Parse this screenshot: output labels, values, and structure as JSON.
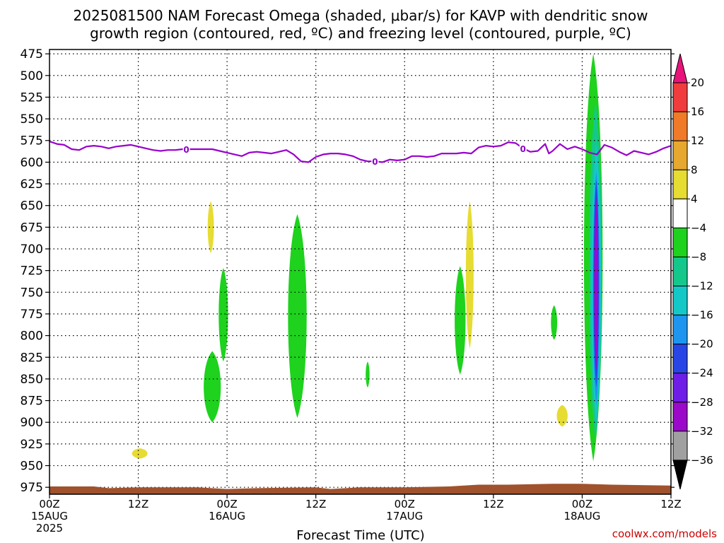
{
  "title_line1": "2025081500 NAM Forecast Omega (shaded, μbar/s) for KAVP with dendritic snow",
  "title_line2": "growth region (contoured, red, ºC) and freezing level (contoured, purple, ºC)",
  "x_axis_label": "Forecast Time (UTC)",
  "credit": "coolwx.com/models",
  "colors": {
    "frz_line": "#9900cc",
    "ground": "#a0522d",
    "grid": "#000000"
  },
  "chart_data": {
    "type": "heatmap",
    "x_unit": "forecast hour from 2025081500",
    "x_range": [
      0,
      84
    ],
    "y_unit": "hPa",
    "y_range": [
      475,
      983
    ],
    "y_scale": "pressure (descending down)",
    "y_ticks": [
      475,
      500,
      525,
      550,
      575,
      600,
      625,
      650,
      675,
      700,
      725,
      750,
      775,
      800,
      825,
      850,
      875,
      900,
      925,
      950,
      975
    ],
    "x_ticks": [
      {
        "hour": 0,
        "time": "00Z",
        "date": "15AUG",
        "year": "2025"
      },
      {
        "hour": 12,
        "time": "12Z",
        "date": "",
        "year": ""
      },
      {
        "hour": 24,
        "time": "00Z",
        "date": "16AUG",
        "year": ""
      },
      {
        "hour": 36,
        "time": "12Z",
        "date": "",
        "year": ""
      },
      {
        "hour": 48,
        "time": "00Z",
        "date": "17AUG",
        "year": ""
      },
      {
        "hour": 60,
        "time": "12Z",
        "date": "",
        "year": ""
      },
      {
        "hour": 72,
        "time": "00Z",
        "date": "18AUG",
        "year": ""
      },
      {
        "hour": 84,
        "time": "12Z",
        "date": "",
        "year": ""
      }
    ],
    "grid": true,
    "colorbar": {
      "labels": [
        "20",
        "16",
        "12",
        "8",
        "4",
        "−4",
        "−8",
        "−12",
        "−16",
        "−20",
        "−24",
        "−28",
        "−32",
        "−36"
      ],
      "bands": [
        {
          "lo": 20,
          "hi": 24,
          "color": "#e8147a",
          "shape": "triangle-top"
        },
        {
          "lo": 16,
          "hi": 20,
          "color": "#f03c3c"
        },
        {
          "lo": 12,
          "hi": 16,
          "color": "#f07a28"
        },
        {
          "lo": 8,
          "hi": 12,
          "color": "#e6a82e"
        },
        {
          "lo": 4,
          "hi": 8,
          "color": "#e6dc32"
        },
        {
          "lo": -4,
          "hi": 4,
          "color": "#ffffff"
        },
        {
          "lo": -8,
          "hi": -4,
          "color": "#1ed21e"
        },
        {
          "lo": -12,
          "hi": -8,
          "color": "#14c88c"
        },
        {
          "lo": -16,
          "hi": -12,
          "color": "#14c8c8"
        },
        {
          "lo": -20,
          "hi": -16,
          "color": "#1e96f0"
        },
        {
          "lo": -24,
          "hi": -20,
          "color": "#2846e6"
        },
        {
          "lo": -28,
          "hi": -24,
          "color": "#6e1ee6"
        },
        {
          "lo": -32,
          "hi": -28,
          "color": "#9a0ac8"
        },
        {
          "lo": -36,
          "hi": -32,
          "color": "#a0a0a0"
        },
        {
          "lo": -40,
          "hi": -36,
          "color": "#000000",
          "shape": "triangle-bottom"
        }
      ]
    },
    "freezing_level": {
      "contour_label": "0",
      "label_hours": [
        18.5,
        44,
        64
      ],
      "points": [
        [
          0,
          576
        ],
        [
          1,
          579
        ],
        [
          2,
          580
        ],
        [
          3,
          585
        ],
        [
          4,
          586
        ],
        [
          5,
          582
        ],
        [
          6,
          581
        ],
        [
          7,
          582
        ],
        [
          8,
          584
        ],
        [
          9,
          582
        ],
        [
          10,
          581
        ],
        [
          11,
          580
        ],
        [
          12,
          582
        ],
        [
          13,
          584
        ],
        [
          14,
          586
        ],
        [
          15,
          587
        ],
        [
          16,
          586
        ],
        [
          17,
          586
        ],
        [
          18,
          585
        ],
        [
          19,
          585
        ],
        [
          20,
          585
        ],
        [
          21,
          585
        ],
        [
          22,
          585
        ],
        [
          23,
          587
        ],
        [
          24,
          589
        ],
        [
          25,
          591
        ],
        [
          26,
          593
        ],
        [
          27,
          589
        ],
        [
          28,
          588
        ],
        [
          29,
          589
        ],
        [
          30,
          590
        ],
        [
          31,
          588
        ],
        [
          32,
          586
        ],
        [
          33,
          591
        ],
        [
          34,
          599
        ],
        [
          35,
          600
        ],
        [
          36,
          594
        ],
        [
          37,
          591
        ],
        [
          38,
          590
        ],
        [
          39,
          590
        ],
        [
          40,
          591
        ],
        [
          41,
          593
        ],
        [
          42,
          597
        ],
        [
          43,
          599
        ],
        [
          44,
          599
        ],
        [
          45,
          600
        ],
        [
          46,
          597
        ],
        [
          47,
          598
        ],
        [
          48,
          597
        ],
        [
          49,
          593
        ],
        [
          50,
          593
        ],
        [
          51,
          594
        ],
        [
          52,
          593
        ],
        [
          53,
          590
        ],
        [
          54,
          590
        ],
        [
          55,
          590
        ],
        [
          56,
          589
        ],
        [
          57,
          590
        ],
        [
          58,
          583
        ],
        [
          59,
          581
        ],
        [
          60,
          582
        ],
        [
          61,
          581
        ],
        [
          62,
          577
        ],
        [
          63,
          578
        ],
        [
          64,
          584
        ],
        [
          65,
          588
        ],
        [
          66,
          587
        ],
        [
          67,
          579
        ],
        [
          67.5,
          590
        ],
        [
          68,
          587
        ],
        [
          69,
          579
        ],
        [
          70,
          585
        ],
        [
          71,
          582
        ],
        [
          72,
          585
        ],
        [
          73,
          589
        ],
        [
          74,
          591
        ],
        [
          75,
          580
        ],
        [
          76,
          583
        ],
        [
          77,
          588
        ],
        [
          78,
          592
        ],
        [
          79,
          587
        ],
        [
          80,
          589
        ],
        [
          81,
          591
        ],
        [
          82,
          588
        ],
        [
          83,
          584
        ],
        [
          84,
          581
        ]
      ]
    },
    "ground_pressure": [
      [
        0,
        974
      ],
      [
        6,
        974
      ],
      [
        8,
        976
      ],
      [
        12,
        975
      ],
      [
        20,
        975
      ],
      [
        24,
        977
      ],
      [
        28,
        976
      ],
      [
        36,
        975
      ],
      [
        38,
        977
      ],
      [
        42,
        975
      ],
      [
        48,
        975
      ],
      [
        54,
        974
      ],
      [
        58,
        972
      ],
      [
        62,
        972
      ],
      [
        68,
        971
      ],
      [
        72,
        971
      ],
      [
        76,
        972
      ],
      [
        84,
        973
      ]
    ],
    "omega_areas": [
      {
        "value": -6,
        "center_hour": 22,
        "time_halfwidth": 1.1,
        "top": 818,
        "bottom": 900
      },
      {
        "value": -6,
        "center_hour": 23.5,
        "time_halfwidth": 0.6,
        "top": 722,
        "bottom": 830
      },
      {
        "value": 6,
        "center_hour": 21.8,
        "time_halfwidth": 0.4,
        "top": 645,
        "bottom": 705
      },
      {
        "value": 6,
        "center_hour": 12.2,
        "time_halfwidth": 1.0,
        "top": 930,
        "bottom": 942
      },
      {
        "value": -6,
        "center_hour": 33.5,
        "time_halfwidth": 1.2,
        "top": 660,
        "bottom": 895
      },
      {
        "value": -6,
        "center_hour": 43,
        "time_halfwidth": 0.25,
        "top": 830,
        "bottom": 860
      },
      {
        "value": -6,
        "center_hour": 55.5,
        "time_halfwidth": 0.7,
        "top": 720,
        "bottom": 845
      },
      {
        "value": 6,
        "center_hour": 56.8,
        "time_halfwidth": 0.5,
        "top": 645,
        "bottom": 815
      },
      {
        "value": -6,
        "center_hour": 68.2,
        "time_halfwidth": 0.4,
        "top": 765,
        "bottom": 805
      },
      {
        "value": 6,
        "center_hour": 69.3,
        "time_halfwidth": 0.7,
        "top": 880,
        "bottom": 905
      },
      {
        "value": -6,
        "center_hour": 73.5,
        "time_halfwidth": 1.2,
        "top": 475,
        "bottom": 945
      },
      {
        "value": -10,
        "center_hour": 73.8,
        "time_halfwidth": 0.8,
        "top": 530,
        "bottom": 920
      },
      {
        "value": -14,
        "center_hour": 73.9,
        "time_halfwidth": 0.6,
        "top": 580,
        "bottom": 900
      },
      {
        "value": -18,
        "center_hour": 73.9,
        "time_halfwidth": 0.45,
        "top": 610,
        "bottom": 880
      },
      {
        "value": -22,
        "center_hour": 73.9,
        "time_halfwidth": 0.35,
        "top": 620,
        "bottom": 860
      },
      {
        "value": -30,
        "center_hour": 73.9,
        "time_halfwidth": 0.25,
        "top": 640,
        "bottom": 840
      }
    ]
  }
}
